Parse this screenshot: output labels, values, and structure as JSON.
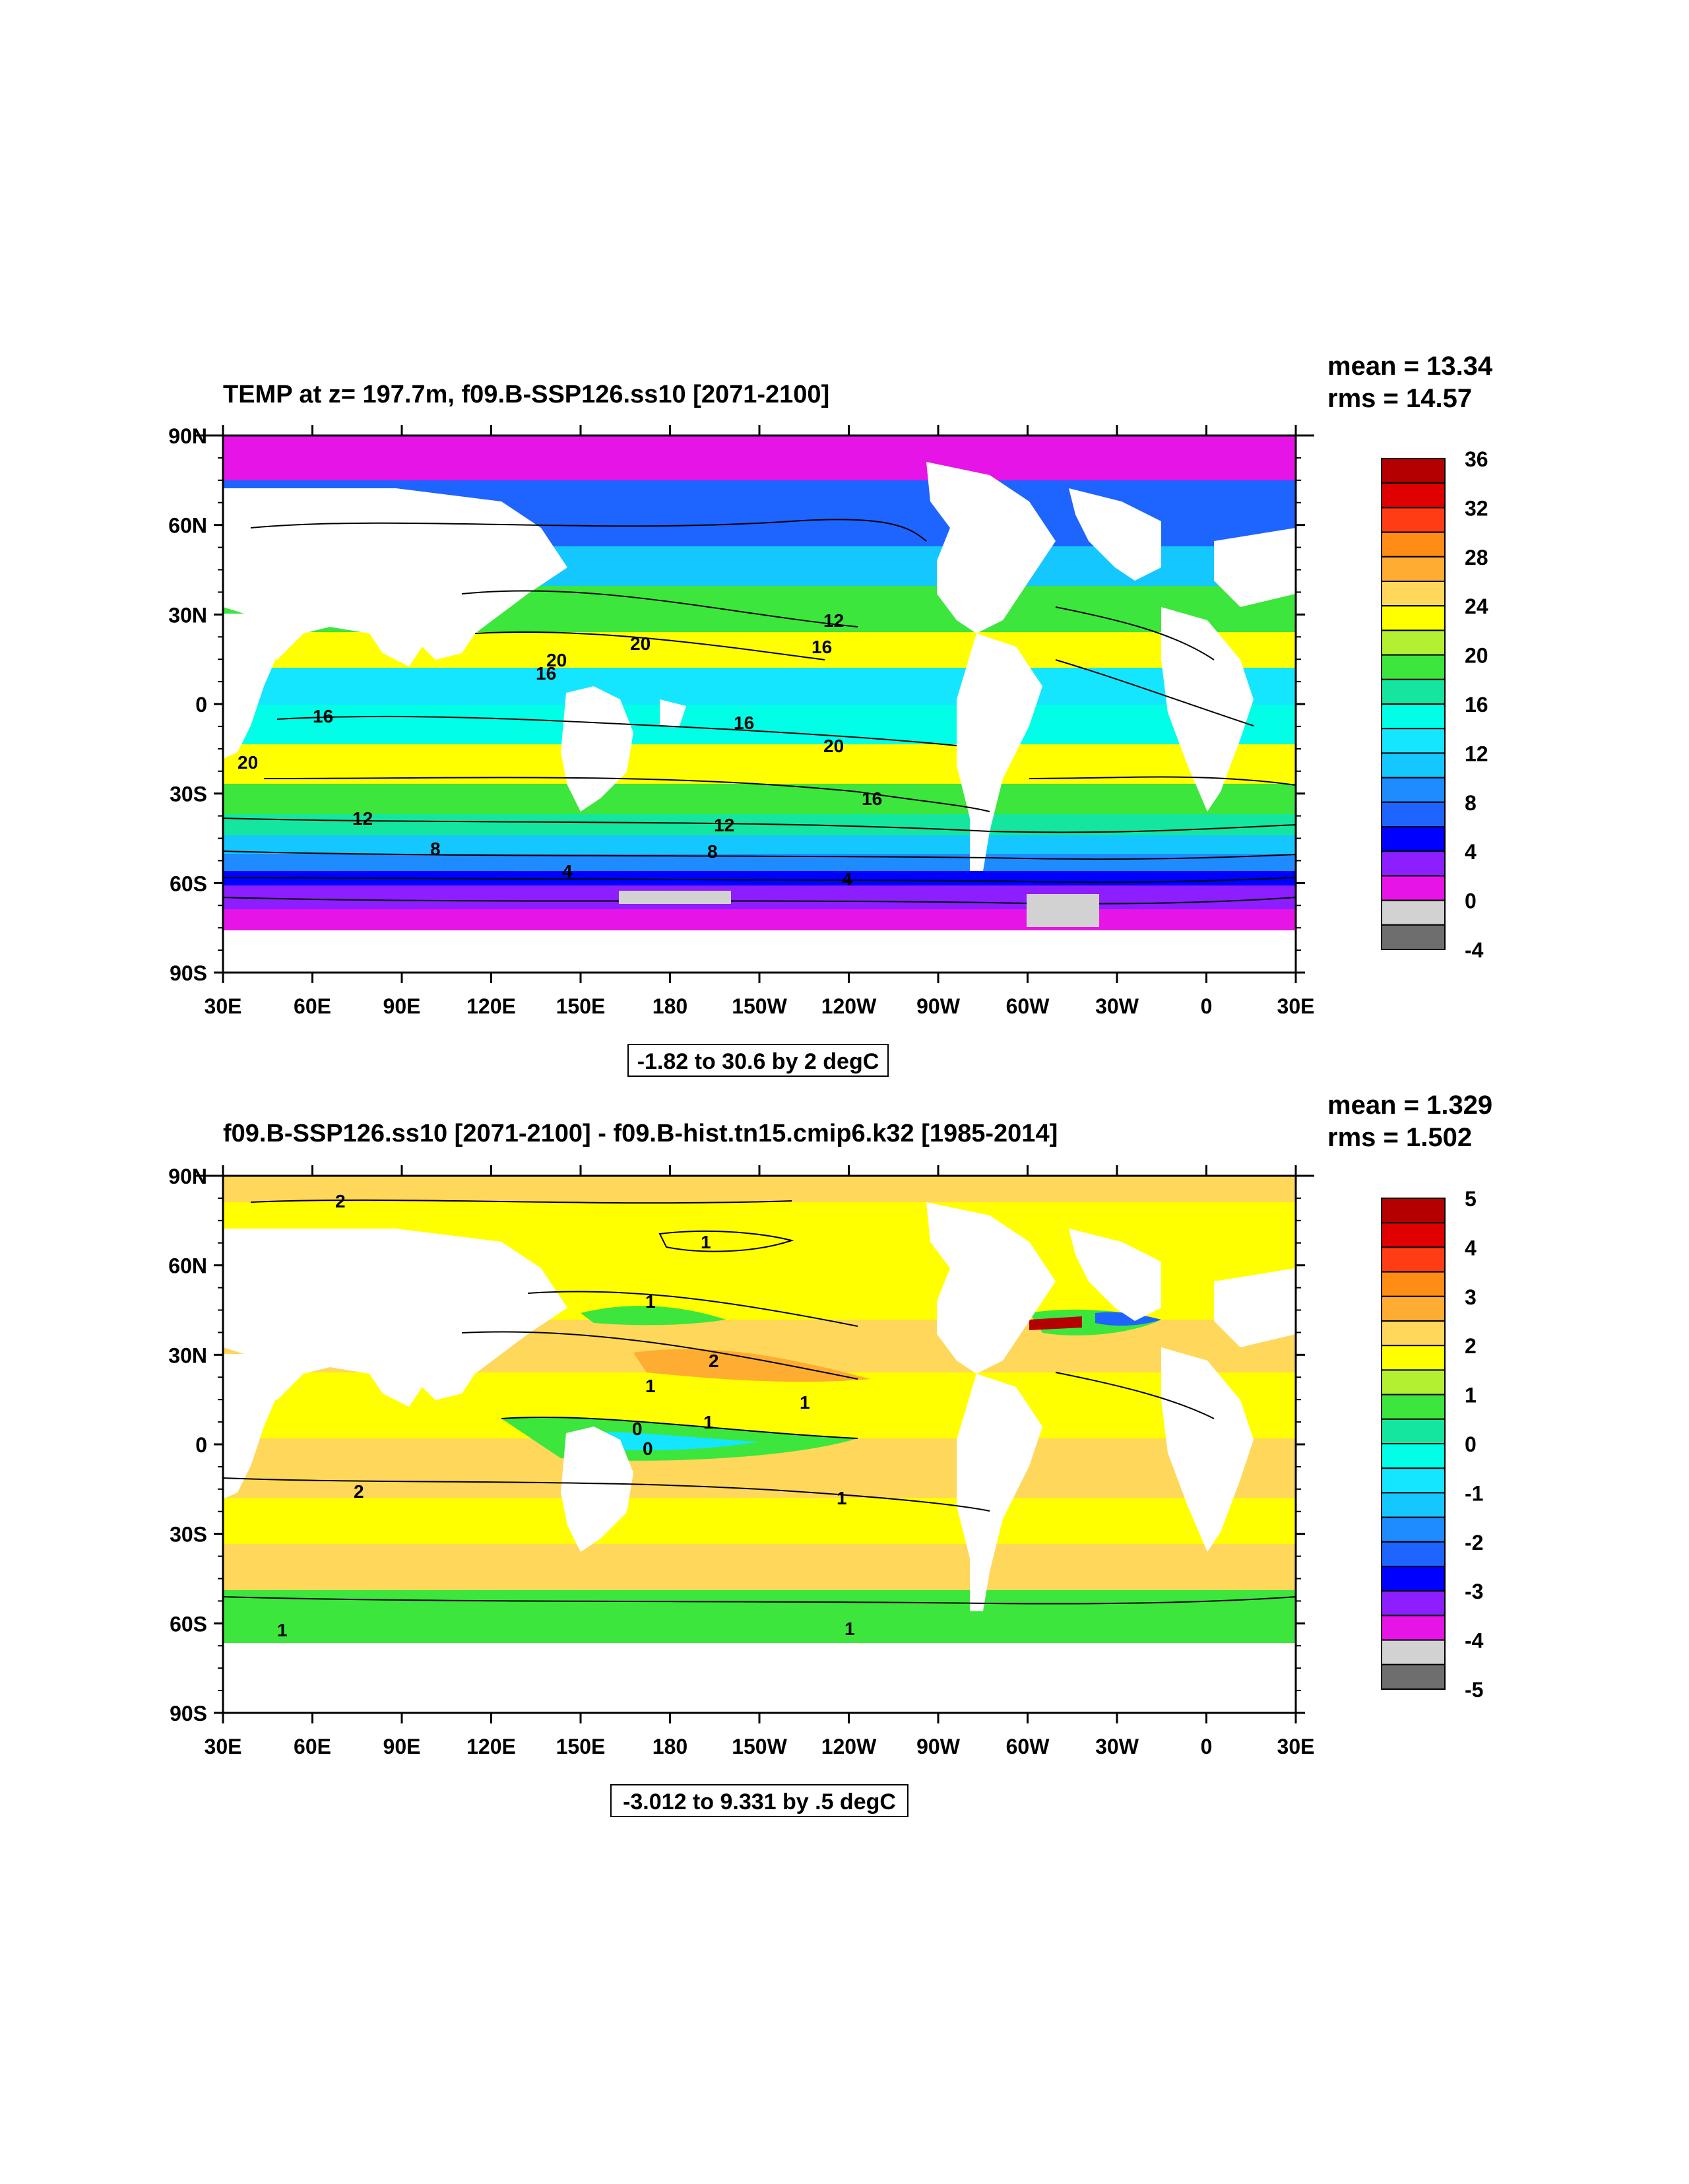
{
  "panels": [
    {
      "title": "TEMP at z= 197.7m, f09.B-SSP126.ss10 [2071-2100]",
      "mean_text": "mean = 13.34",
      "rms_text": "rms = 14.57",
      "info": "-1.82 to 30.6 by 2 degC",
      "lat_ticks": [
        "90N",
        "60N",
        "30N",
        "0",
        "30S",
        "60S",
        "90S"
      ],
      "lon_ticks": [
        "30E",
        "60E",
        "90E",
        "120E",
        "150E",
        "180",
        "150W",
        "120W",
        "90W",
        "60W",
        "30W",
        "0",
        "30E"
      ],
      "colorbar": {
        "labels": [
          "36",
          "32",
          "28",
          "24",
          "20",
          "16",
          "12",
          "8",
          "4",
          "0",
          "-4"
        ],
        "colors": [
          "#b40000",
          "#e00000",
          "#ff3c14",
          "#ff8c14",
          "#ffac32",
          "#ffd75a",
          "#ffff00",
          "#b4f032",
          "#3ce63c",
          "#14e6a0",
          "#00ffe6",
          "#14e6ff",
          "#14c8ff",
          "#1e8cff",
          "#1e64ff",
          "#0000ff",
          "#8c1eff",
          "#e614e6",
          "#d2d2d2",
          "#6e6e6e"
        ]
      },
      "contour_labels": [
        "20",
        "20",
        "16",
        "16",
        "12",
        "16",
        "20",
        "20",
        "16",
        "16",
        "12",
        "12",
        "8",
        "8",
        "4",
        "4"
      ]
    },
    {
      "title": "f09.B-SSP126.ss10 [2071-2100] - f09.B-hist.tn15.cmip6.k32 [1985-2014]",
      "mean_text": "mean = 1.329",
      "rms_text": "rms = 1.502",
      "info": "-3.012 to 9.331 by .5 degC",
      "lat_ticks": [
        "90N",
        "60N",
        "30N",
        "0",
        "30S",
        "60S",
        "90S"
      ],
      "lon_ticks": [
        "30E",
        "60E",
        "90E",
        "120E",
        "150E",
        "180",
        "150W",
        "120W",
        "90W",
        "60W",
        "30W",
        "0",
        "30E"
      ],
      "colorbar": {
        "labels": [
          "5",
          "4",
          "3",
          "2",
          "1",
          "0",
          "-1",
          "-2",
          "-3",
          "-4",
          "-5"
        ],
        "colors": [
          "#b40000",
          "#e00000",
          "#ff3c14",
          "#ff8c14",
          "#ffac32",
          "#ffd75a",
          "#ffff00",
          "#b4f032",
          "#3ce63c",
          "#14e6a0",
          "#00ffe6",
          "#14e6ff",
          "#14c8ff",
          "#1e8cff",
          "#1e64ff",
          "#0000ff",
          "#8c1eff",
          "#e614e6",
          "#d2d2d2",
          "#6e6e6e"
        ]
      },
      "contour_labels": [
        "2",
        "1",
        "1",
        "2",
        "1",
        "1",
        "0",
        "0",
        "1",
        "2",
        "1",
        "1",
        "1"
      ]
    }
  ]
}
